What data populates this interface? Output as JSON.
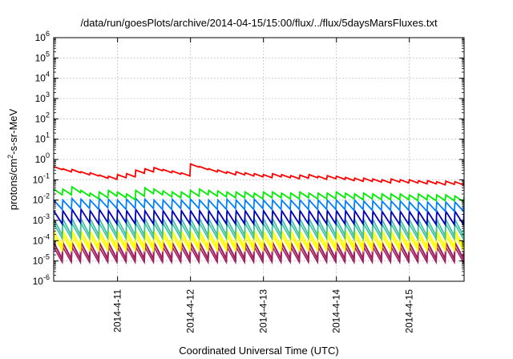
{
  "chart_data": {
    "type": "line",
    "title": "/data/run/goesPlots/archive/2014-04-15/15:00/flux/../flux/5daysMarsFluxes.txt",
    "xlabel": "Coordinated Universal Time (UTC)",
    "ylabel": "protons/cm²-s-sr-MeV",
    "ylabel_parts": [
      "protons/cm",
      "2",
      "-s-sr-MeV"
    ],
    "xlim": [
      "2014-04-10T03:00",
      "2014-04-15T18:00"
    ],
    "ylim": [
      1e-06,
      1000000.0
    ],
    "yscale": "log",
    "grid": true,
    "legend": "none",
    "x_ticks": [
      "2014-4-11",
      "2014-4-12",
      "2014-4-13",
      "2014-4-14",
      "2014-4-15"
    ],
    "x_tick_times": [
      "2014-04-11T00:00",
      "2014-04-12T00:00",
      "2014-04-13T00:00",
      "2014-04-14T00:00",
      "2014-04-15T00:00"
    ],
    "y_ticks": [
      {
        "value": 1e-06,
        "base": "10",
        "exp": "-6"
      },
      {
        "value": 1e-05,
        "base": "10",
        "exp": "-5"
      },
      {
        "value": 0.0001,
        "base": "10",
        "exp": "-4"
      },
      {
        "value": 0.001,
        "base": "10",
        "exp": "-3"
      },
      {
        "value": 0.01,
        "base": "10",
        "exp": "-2"
      },
      {
        "value": 0.1,
        "base": "10",
        "exp": "-1"
      },
      {
        "value": 1,
        "base": "10",
        "exp": "0"
      },
      {
        "value": 10,
        "base": "10",
        "exp": "1"
      },
      {
        "value": 100,
        "base": "10",
        "exp": "2"
      },
      {
        "value": 1000,
        "base": "10",
        "exp": "3"
      },
      {
        "value": 10000,
        "base": "10",
        "exp": "4"
      },
      {
        "value": 100000,
        "base": "10",
        "exp": "5"
      },
      {
        "value": 1000000,
        "base": "10",
        "exp": "6"
      }
    ],
    "x": [
      "2014-04-10T03:00",
      "2014-04-10T06:00",
      "2014-04-10T09:00",
      "2014-04-10T12:00",
      "2014-04-10T15:00",
      "2014-04-10T18:00",
      "2014-04-10T21:00",
      "2014-04-11T00:00",
      "2014-04-11T03:00",
      "2014-04-11T06:00",
      "2014-04-11T09:00",
      "2014-04-11T12:00",
      "2014-04-11T15:00",
      "2014-04-11T18:00",
      "2014-04-11T21:00",
      "2014-04-12T00:00",
      "2014-04-12T03:00",
      "2014-04-12T06:00",
      "2014-04-12T09:00",
      "2014-04-12T12:00",
      "2014-04-12T15:00",
      "2014-04-12T18:00",
      "2014-04-12T21:00",
      "2014-04-13T00:00",
      "2014-04-13T03:00",
      "2014-04-13T06:00",
      "2014-04-13T09:00",
      "2014-04-13T12:00",
      "2014-04-13T15:00",
      "2014-04-13T18:00",
      "2014-04-13T21:00",
      "2014-04-14T00:00",
      "2014-04-14T03:00",
      "2014-04-14T06:00",
      "2014-04-14T09:00",
      "2014-04-14T12:00",
      "2014-04-14T15:00",
      "2014-04-14T18:00",
      "2014-04-14T21:00",
      "2014-04-15T00:00",
      "2014-04-15T03:00",
      "2014-04-15T06:00",
      "2014-04-15T09:00",
      "2014-04-15T12:00",
      "2014-04-15T15:00",
      "2014-04-15T18:00"
    ],
    "series_colors": [
      "#ff0000",
      "#00ee00",
      "#0080ff",
      "#0000bb",
      "#40c0a0",
      "#ffff00",
      "#a02060"
    ],
    "series": [
      {
        "color": "#ff0000",
        "values": [
          0.45,
          0.35,
          0.32,
          0.25,
          0.22,
          0.17,
          0.15,
          0.18,
          0.2,
          0.3,
          0.35,
          0.4,
          0.32,
          0.27,
          0.22,
          0.6,
          0.45,
          0.35,
          0.3,
          0.25,
          0.25,
          0.22,
          0.2,
          0.18,
          0.2,
          0.18,
          0.16,
          0.17,
          0.18,
          0.15,
          0.16,
          0.15,
          0.13,
          0.12,
          0.12,
          0.11,
          0.1,
          0.11,
          0.1,
          0.1,
          0.09,
          0.09,
          0.08,
          0.085,
          0.08,
          0.085
        ]
      },
      {
        "color": "#00ee00",
        "values": [
          0.035,
          0.035,
          0.045,
          0.03,
          0.022,
          0.025,
          0.03,
          0.025,
          0.02,
          0.03,
          0.04,
          0.035,
          0.028,
          0.025,
          0.025,
          0.03,
          0.035,
          0.03,
          0.028,
          0.025,
          0.025,
          0.025,
          0.022,
          0.025,
          0.025,
          0.022,
          0.022,
          0.025,
          0.022,
          0.022,
          0.022,
          0.025,
          0.022,
          0.02,
          0.022,
          0.02,
          0.02,
          0.02,
          0.02,
          0.018,
          0.02,
          0.018,
          0.018,
          0.018,
          0.016,
          0.015
        ]
      },
      {
        "color": "#0080ff",
        "values": [
          0.01,
          0.01,
          0.012,
          0.011,
          0.01,
          0.012,
          0.011,
          0.01,
          0.011,
          0.012,
          0.011,
          0.01,
          0.01,
          0.011,
          0.01,
          0.011,
          0.01,
          0.01,
          0.01,
          0.011,
          0.01,
          0.01,
          0.011,
          0.01,
          0.01,
          0.01,
          0.01,
          0.01,
          0.01,
          0.01,
          0.01,
          0.01,
          0.009,
          0.01,
          0.009,
          0.009,
          0.009,
          0.009,
          0.009,
          0.008,
          0.008,
          0.008,
          0.008,
          0.008,
          0.008,
          0.008
        ]
      },
      {
        "color": "#0000bb",
        "values": [
          0.003,
          0.003,
          0.0035,
          0.0035,
          0.003,
          0.0035,
          0.003,
          0.0035,
          0.003,
          0.0035,
          0.003,
          0.003,
          0.003,
          0.003,
          0.003,
          0.003,
          0.003,
          0.003,
          0.003,
          0.003,
          0.003,
          0.003,
          0.003,
          0.003,
          0.003,
          0.003,
          0.003,
          0.003,
          0.003,
          0.003,
          0.003,
          0.003,
          0.003,
          0.003,
          0.003,
          0.0028,
          0.0028,
          0.0028,
          0.0028,
          0.0028,
          0.0028,
          0.0028,
          0.0028,
          0.0028,
          0.0028,
          0.0028
        ]
      },
      {
        "color": "#40c0a0",
        "values": [
          0.0012,
          0.0012,
          0.0012,
          0.0012,
          0.0012,
          0.0012,
          0.0012,
          0.0012,
          0.0012,
          0.0012,
          0.0012,
          0.0012,
          0.0012,
          0.0012,
          0.0012,
          0.0012,
          0.0012,
          0.0012,
          0.0012,
          0.0012,
          0.0012,
          0.0012,
          0.0012,
          0.0012,
          0.0012,
          0.0012,
          0.0012,
          0.0012,
          0.0012,
          0.0012,
          0.0012,
          0.0012,
          0.0011,
          0.0011,
          0.0011,
          0.0011,
          0.0011,
          0.0011,
          0.0011,
          0.0011,
          0.0011,
          0.0011,
          0.0011,
          0.0011,
          0.0011,
          0.0011
        ]
      },
      {
        "color": "#ffff00",
        "values": [
          0.0003,
          0.0003,
          0.0003,
          0.0003,
          0.0003,
          0.0003,
          0.0003,
          0.0003,
          0.0003,
          0.0003,
          0.0003,
          0.0003,
          0.0003,
          0.0003,
          0.0003,
          0.0003,
          0.0003,
          0.0003,
          0.0003,
          0.0003,
          0.0003,
          0.0003,
          0.0003,
          0.0003,
          0.0003,
          0.0003,
          0.0003,
          0.0003,
          0.0003,
          0.0003,
          0.0003,
          0.0003,
          0.0003,
          0.0003,
          0.0003,
          0.0003,
          0.0003,
          0.0003,
          0.0003,
          0.0003,
          0.0003,
          0.0003,
          0.0003,
          0.0003,
          0.0003,
          0.0003
        ]
      },
      {
        "color": "#a02060",
        "values": [
          8e-05,
          8e-05,
          8e-05,
          8e-05,
          8e-05,
          8e-05,
          8e-05,
          8e-05,
          8e-05,
          8e-05,
          8e-05,
          8e-05,
          8e-05,
          8e-05,
          8e-05,
          8e-05,
          8e-05,
          8e-05,
          8e-05,
          8e-05,
          8e-05,
          8e-05,
          8e-05,
          8e-05,
          8e-05,
          8e-05,
          8e-05,
          8e-05,
          8e-05,
          8e-05,
          8e-05,
          8e-05,
          8e-05,
          8e-05,
          8e-05,
          8e-05,
          8e-05,
          8e-05,
          8e-05,
          8e-05,
          8e-05,
          8e-05,
          8e-05,
          8e-05,
          8e-05,
          8e-05
        ]
      }
    ]
  }
}
